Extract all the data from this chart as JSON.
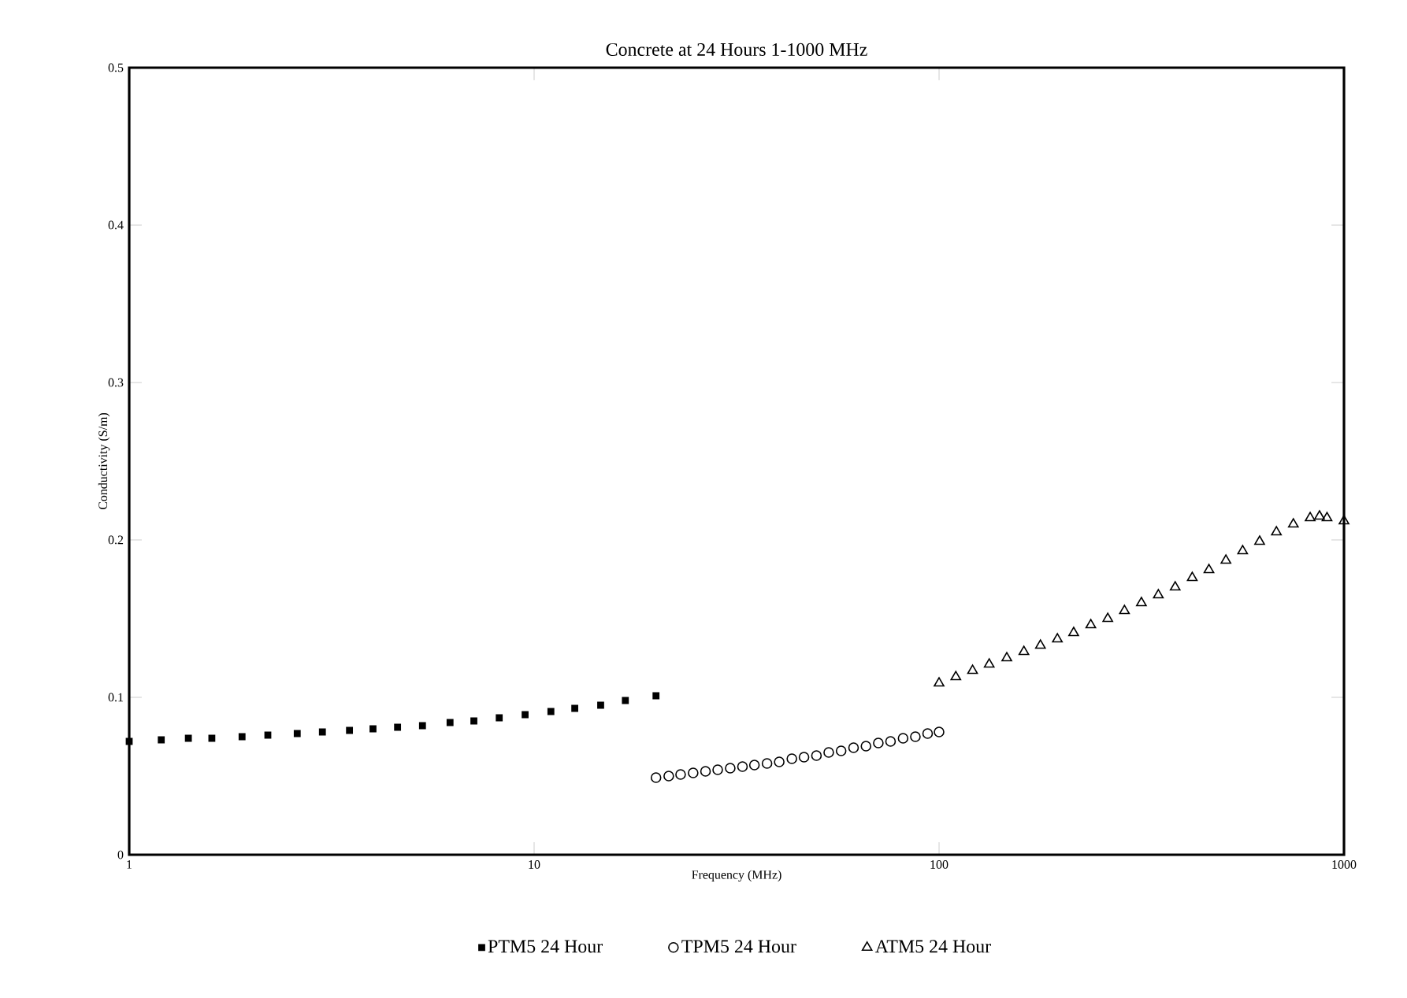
{
  "chart_data": {
    "type": "scatter",
    "title": "Concrete at 24 Hours 1-1000 MHz",
    "xlabel": "Frequency (MHz)",
    "ylabel": "Conductivity (S/m)",
    "log": "x",
    "xlim": [
      1,
      1000
    ],
    "xticks": [
      1,
      10,
      100,
      1000
    ],
    "ylim": [
      0,
      0.5
    ],
    "yticks": [
      0,
      0.1,
      0.2,
      0.3,
      0.4,
      0.5
    ],
    "grid": false,
    "legend": "bottom",
    "series": [
      {
        "name": "PTM5 24 Hour",
        "color": "#000000",
        "marker": "square",
        "x": [
          1,
          1.2,
          1.4,
          1.6,
          1.9,
          2.2,
          2.6,
          3,
          3.5,
          4,
          4.6,
          5.3,
          6.2,
          7.1,
          8.2,
          9.5,
          11,
          12.6,
          14.6,
          16.8,
          20
        ],
        "values": [
          0.072,
          0.073,
          0.074,
          0.074,
          0.075,
          0.076,
          0.077,
          0.078,
          0.079,
          0.08,
          0.081,
          0.082,
          0.084,
          0.085,
          0.087,
          0.089,
          0.091,
          0.093,
          0.095,
          0.098,
          0.101
        ]
      },
      {
        "name": "TPM5 24 Hour",
        "color": "#000000",
        "marker": "circle",
        "x": [
          20,
          21.5,
          23,
          24.7,
          26.5,
          28.4,
          30.5,
          32.7,
          35,
          37.6,
          40.3,
          43.3,
          46.4,
          49.8,
          53.4,
          57.3,
          61.5,
          66,
          70.8,
          75.9,
          81.5,
          87.4,
          93.7,
          100
        ],
        "values": [
          0.049,
          0.05,
          0.051,
          0.052,
          0.053,
          0.054,
          0.055,
          0.056,
          0.057,
          0.058,
          0.059,
          0.061,
          0.062,
          0.063,
          0.065,
          0.066,
          0.068,
          0.069,
          0.071,
          0.072,
          0.074,
          0.075,
          0.077,
          0.078
        ]
      },
      {
        "name": "ATM5 24 Hour",
        "color": "#000000",
        "marker": "triangle",
        "x": [
          100,
          110,
          121,
          133,
          147,
          162,
          178,
          196,
          215,
          237,
          261,
          287,
          316,
          348,
          383,
          422,
          464,
          511,
          562,
          619,
          681,
          750,
          825,
          870,
          908,
          1000
        ],
        "values": [
          0.109,
          0.113,
          0.117,
          0.121,
          0.125,
          0.129,
          0.133,
          0.137,
          0.141,
          0.146,
          0.15,
          0.155,
          0.16,
          0.165,
          0.17,
          0.176,
          0.181,
          0.187,
          0.193,
          0.199,
          0.205,
          0.21,
          0.214,
          0.215,
          0.214,
          0.212
        ]
      }
    ]
  }
}
